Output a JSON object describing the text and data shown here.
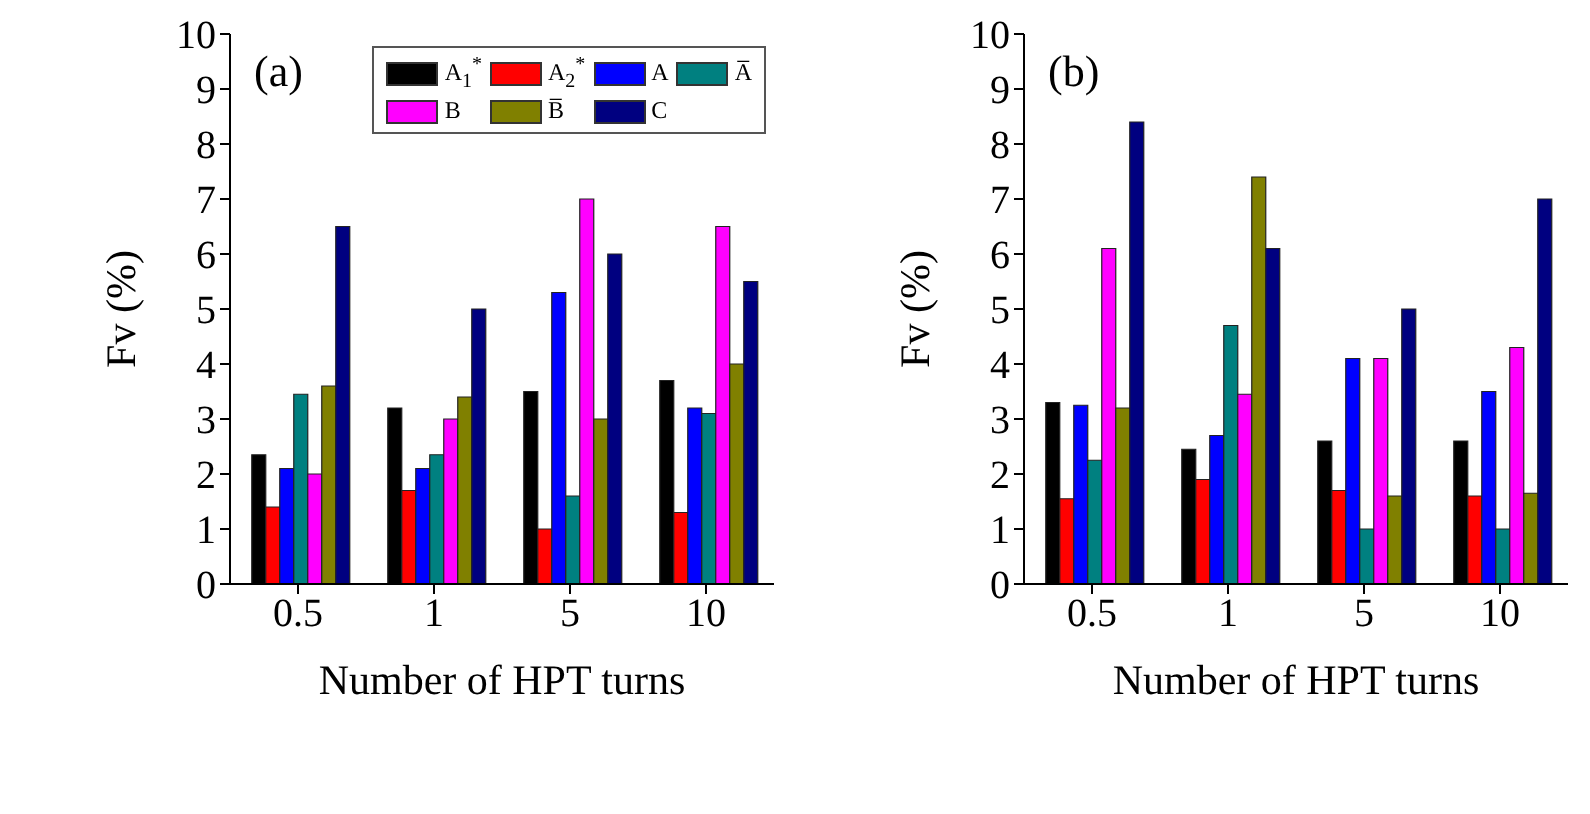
{
  "chart_data": [
    {
      "type": "bar",
      "annotations": [
        "(a)"
      ],
      "xlabel": "Number of HPT turns",
      "ylabel": "Fv (%)",
      "categories": [
        "0.5",
        "1",
        "5",
        "10"
      ],
      "ylim": [
        0,
        10
      ],
      "yticks": [
        0,
        1,
        2,
        3,
        4,
        5,
        6,
        7,
        8,
        9,
        10
      ],
      "legend": "top right",
      "series": [
        {
          "name": "A$_{1}$$^{*}$",
          "color": "#000000",
          "values": [
            2.35,
            3.2,
            3.5,
            3.7
          ]
        },
        {
          "name": "A$_{2}$$^{*}$",
          "color": "#ff0000",
          "values": [
            1.4,
            1.7,
            1.0,
            1.3
          ]
        },
        {
          "name": "A",
          "color": "#0000ff",
          "values": [
            2.1,
            2.1,
            5.3,
            3.2
          ]
        },
        {
          "name": "A̅",
          "color": "#008080",
          "values": [
            3.45,
            2.35,
            1.6,
            3.1
          ]
        },
        {
          "name": "B",
          "color": "#ff00ff",
          "values": [
            2.0,
            3.0,
            7.0,
            6.5
          ]
        },
        {
          "name": "B̅",
          "color": "#808000",
          "values": [
            3.6,
            3.4,
            3.0,
            4.0
          ]
        },
        {
          "name": "C",
          "color": "#000080",
          "values": [
            6.5,
            5.0,
            6.0,
            5.5
          ]
        }
      ]
    },
    {
      "type": "bar",
      "annotations": [
        "(b)"
      ],
      "xlabel": "Number of HPT turns",
      "ylabel": "Fv (%)",
      "categories": [
        "0.5",
        "1",
        "5",
        "10"
      ],
      "ylim": [
        0,
        10
      ],
      "yticks": [
        0,
        1,
        2,
        3,
        4,
        5,
        6,
        7,
        8,
        9,
        10
      ],
      "series": [
        {
          "color": "#000000",
          "values": [
            3.3,
            2.45,
            2.6,
            2.6
          ]
        },
        {
          "color": "#ff0000",
          "values": [
            1.55,
            1.9,
            1.7,
            1.6
          ]
        },
        {
          "color": "#0000ff",
          "values": [
            3.25,
            2.7,
            4.1,
            3.5
          ]
        },
        {
          "color": "#008080",
          "values": [
            2.25,
            4.7,
            1.0,
            1.0
          ]
        },
        {
          "color": "#ff00ff",
          "values": [
            6.1,
            3.45,
            4.1,
            4.3
          ]
        },
        {
          "color": "#808000",
          "values": [
            3.2,
            7.4,
            1.6,
            1.65
          ]
        },
        {
          "color": "#000080",
          "values": [
            8.4,
            6.1,
            5.0,
            7.0
          ]
        }
      ]
    }
  ]
}
